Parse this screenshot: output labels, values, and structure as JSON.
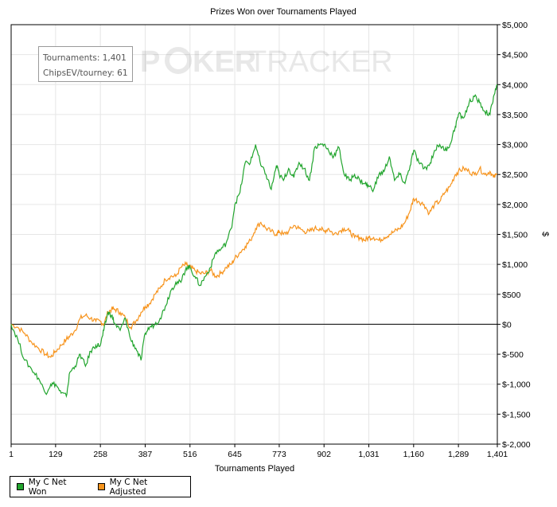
{
  "chart_data": {
    "type": "line",
    "title": "Prizes Won over Tournaments Played",
    "xlabel": "Tournaments Played",
    "ylabel": "$",
    "xlim": [
      1,
      1401
    ],
    "ylim": [
      -2000,
      5000
    ],
    "x_ticks": [
      "1",
      "129",
      "258",
      "387",
      "516",
      "645",
      "773",
      "902",
      "1,031",
      "1,160",
      "1,289",
      "1,401"
    ],
    "x_tick_values": [
      1,
      129,
      258,
      387,
      516,
      645,
      773,
      902,
      1031,
      1160,
      1289,
      1401
    ],
    "y_ticks": [
      "$5,000",
      "$4,500",
      "$4,000",
      "$3,500",
      "$3,000",
      "$2,500",
      "$2,000",
      "$1,500",
      "$1,000",
      "$500",
      "$0",
      "$-500",
      "$-1,000",
      "$-1,500",
      "$-2,000"
    ],
    "y_tick_values": [
      5000,
      4500,
      4000,
      3500,
      3000,
      2500,
      2000,
      1500,
      1000,
      500,
      0,
      -500,
      -1000,
      -1500,
      -2000
    ],
    "grid": true,
    "legend_position": "bottom-left",
    "series": [
      {
        "name": "My C Net Won",
        "color": "#22a52e",
        "x": [
          1,
          20,
          40,
          60,
          80,
          100,
          115,
          129,
          145,
          160,
          170,
          185,
          200,
          215,
          230,
          245,
          258,
          268,
          280,
          290,
          300,
          315,
          330,
          345,
          360,
          375,
          387,
          400,
          415,
          430,
          445,
          460,
          475,
          490,
          505,
          516,
          530,
          545,
          560,
          575,
          590,
          605,
          620,
          635,
          645,
          660,
          675,
          690,
          705,
          720,
          735,
          750,
          765,
          773,
          785,
          800,
          815,
          830,
          845,
          860,
          875,
          890,
          902,
          915,
          930,
          945,
          960,
          975,
          990,
          1005,
          1020,
          1031,
          1045,
          1060,
          1075,
          1090,
          1105,
          1120,
          1135,
          1150,
          1160,
          1175,
          1190,
          1205,
          1220,
          1235,
          1250,
          1265,
          1280,
          1289,
          1305,
          1320,
          1335,
          1350,
          1365,
          1380,
          1390,
          1401
        ],
        "y": [
          0,
          -250,
          -600,
          -750,
          -900,
          -1150,
          -1000,
          -1000,
          -1150,
          -1200,
          -800,
          -700,
          -500,
          -700,
          -450,
          -350,
          -350,
          -100,
          200,
          150,
          0,
          -100,
          100,
          -250,
          -400,
          -600,
          -150,
          -50,
          0,
          100,
          300,
          550,
          700,
          700,
          950,
          950,
          800,
          650,
          800,
          950,
          1200,
          1250,
          1350,
          1600,
          2000,
          2200,
          2700,
          2700,
          3000,
          2650,
          2500,
          2250,
          2650,
          2500,
          2400,
          2600,
          2450,
          2700,
          2600,
          2400,
          2950,
          3000,
          3000,
          2900,
          2800,
          2950,
          2500,
          2400,
          2500,
          2400,
          2350,
          2300,
          2250,
          2500,
          2550,
          2800,
          2400,
          2500,
          2350,
          2650,
          2900,
          2700,
          2600,
          2650,
          2900,
          3000,
          2900,
          3000,
          3300,
          3500,
          3450,
          3700,
          3800,
          3700,
          3550,
          3500,
          3800,
          4000
        ]
      },
      {
        "name": "My C Net Adjusted",
        "color": "#f7941d",
        "x": [
          1,
          20,
          40,
          60,
          80,
          100,
          115,
          129,
          145,
          160,
          170,
          185,
          200,
          215,
          230,
          245,
          258,
          268,
          280,
          290,
          300,
          315,
          330,
          345,
          360,
          375,
          387,
          400,
          415,
          430,
          445,
          460,
          475,
          490,
          505,
          516,
          530,
          545,
          560,
          575,
          590,
          605,
          620,
          635,
          645,
          660,
          675,
          690,
          705,
          720,
          735,
          750,
          765,
          773,
          785,
          800,
          815,
          830,
          845,
          860,
          875,
          890,
          902,
          915,
          930,
          945,
          960,
          975,
          990,
          1005,
          1020,
          1031,
          1045,
          1060,
          1075,
          1090,
          1105,
          1120,
          1135,
          1150,
          1160,
          1175,
          1190,
          1205,
          1220,
          1235,
          1250,
          1265,
          1280,
          1289,
          1305,
          1320,
          1335,
          1350,
          1365,
          1380,
          1390,
          1401
        ],
        "y": [
          0,
          -50,
          -150,
          -300,
          -400,
          -500,
          -550,
          -450,
          -350,
          -250,
          -200,
          -100,
          100,
          150,
          100,
          50,
          50,
          0,
          200,
          250,
          250,
          200,
          100,
          -50,
          50,
          200,
          300,
          350,
          500,
          600,
          750,
          800,
          800,
          950,
          1000,
          950,
          900,
          850,
          850,
          900,
          800,
          850,
          950,
          1000,
          1100,
          1200,
          1300,
          1400,
          1600,
          1700,
          1600,
          1550,
          1500,
          1550,
          1500,
          1550,
          1650,
          1600,
          1550,
          1550,
          1600,
          1600,
          1550,
          1600,
          1500,
          1550,
          1600,
          1550,
          1450,
          1450,
          1400,
          1450,
          1450,
          1400,
          1450,
          1500,
          1550,
          1600,
          1700,
          1900,
          2100,
          2050,
          2000,
          1850,
          2000,
          2050,
          2200,
          2300,
          2500,
          2550,
          2600,
          2550,
          2500,
          2600,
          2500,
          2550,
          2450,
          2500
        ]
      }
    ]
  },
  "stats_box": {
    "tournaments": "Tournaments: 1,401",
    "chipsev": "ChipsEV/tourney: 61"
  },
  "watermark": {
    "part1": "P",
    "part2": "KER",
    "part3": "TRACKER"
  },
  "legend": {
    "items": [
      {
        "label": "My C Net Won",
        "color": "#22a52e"
      },
      {
        "label": "My C Net Adjusted",
        "color": "#f7941d"
      }
    ]
  }
}
